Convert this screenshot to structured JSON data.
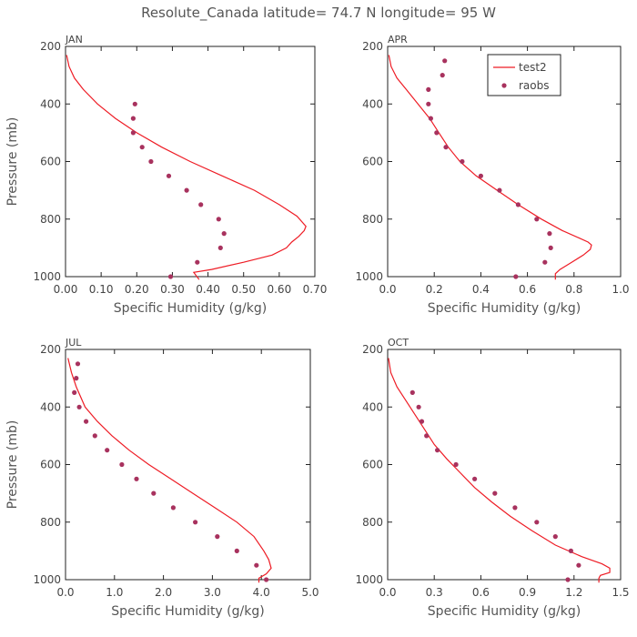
{
  "title": "Resolute_Canada   latitude= 74.7 N longitude= 95 W",
  "colors": {
    "model": "#ee1c25",
    "obs": "#a8325e",
    "text": "#444444"
  },
  "chart_data": [
    {
      "type": "line",
      "panel": "JAN",
      "xlabel": "Specific Humidity (g/kg)",
      "ylabel": "Pressure (mb)",
      "xlim": [
        0,
        0.7
      ],
      "ylim": [
        1000,
        200
      ],
      "xticks": [
        0,
        0.1,
        0.2,
        0.3,
        0.4,
        0.5,
        0.6,
        0.7
      ],
      "xtick_labels": [
        "0.00",
        "0.10",
        "0.20",
        "0.30",
        "0.40",
        "0.50",
        "0.60",
        "0.70"
      ],
      "yticks": [
        200,
        400,
        600,
        800,
        1000
      ],
      "ytick_labels": [
        "200",
        "400",
        "600",
        "800",
        "1000"
      ],
      "series": [
        {
          "name": "test2",
          "kind": "line",
          "x": [
            0.003,
            0.01,
            0.025,
            0.05,
            0.09,
            0.14,
            0.2,
            0.27,
            0.35,
            0.44,
            0.53,
            0.6,
            0.65,
            0.675,
            0.67,
            0.655,
            0.635,
            0.62,
            0.58,
            0.5,
            0.41,
            0.36,
            0.375
          ],
          "y": [
            230,
            270,
            310,
            350,
            400,
            450,
            500,
            550,
            600,
            650,
            700,
            750,
            790,
            825,
            840,
            860,
            880,
            900,
            925,
            950,
            975,
            985,
            1010
          ]
        },
        {
          "name": "raobs",
          "kind": "scatter",
          "x": [
            0.195,
            0.19,
            0.19,
            0.215,
            0.24,
            0.29,
            0.34,
            0.38,
            0.43,
            0.445,
            0.435,
            0.37,
            0.295
          ],
          "y": [
            400,
            450,
            500,
            550,
            600,
            650,
            700,
            750,
            800,
            850,
            900,
            950,
            1000
          ]
        }
      ]
    },
    {
      "type": "line",
      "panel": "APR",
      "xlabel": "Specific Humidity (g/kg)",
      "ylabel": "",
      "xlim": [
        0,
        1.0
      ],
      "ylim": [
        1000,
        200
      ],
      "xticks": [
        0,
        0.2,
        0.4,
        0.6,
        0.8,
        1.0
      ],
      "xtick_labels": [
        "0.0",
        "0.2",
        "0.4",
        "0.6",
        "0.8",
        "1.0"
      ],
      "yticks": [
        200,
        400,
        600,
        800,
        1000
      ],
      "ytick_labels": [
        "200",
        "400",
        "600",
        "800",
        "1000"
      ],
      "legend": {
        "loc": "top-right",
        "entries": [
          {
            "label": "test2",
            "kind": "line"
          },
          {
            "label": "raobs",
            "kind": "scatter"
          }
        ]
      },
      "series": [
        {
          "name": "test2",
          "kind": "line",
          "x": [
            0.005,
            0.015,
            0.04,
            0.08,
            0.13,
            0.18,
            0.22,
            0.26,
            0.31,
            0.38,
            0.47,
            0.56,
            0.66,
            0.75,
            0.82,
            0.86,
            0.875,
            0.87,
            0.84,
            0.79,
            0.74,
            0.72,
            0.72
          ],
          "y": [
            230,
            270,
            310,
            350,
            400,
            450,
            500,
            550,
            600,
            650,
            700,
            750,
            800,
            840,
            865,
            880,
            890,
            905,
            925,
            950,
            975,
            990,
            1010
          ]
        },
        {
          "name": "raobs",
          "kind": "scatter",
          "x": [
            0.245,
            0.235,
            0.175,
            0.175,
            0.185,
            0.21,
            0.25,
            0.32,
            0.4,
            0.48,
            0.56,
            0.64,
            0.695,
            0.7,
            0.675,
            0.55
          ],
          "y": [
            250,
            300,
            350,
            400,
            450,
            500,
            550,
            600,
            650,
            700,
            750,
            800,
            850,
            900,
            950,
            1000
          ]
        }
      ]
    },
    {
      "type": "line",
      "panel": "JUL",
      "xlabel": "Specific Humidity (g/kg)",
      "ylabel": "Pressure (mb)",
      "xlim": [
        0,
        5.0
      ],
      "ylim": [
        1000,
        200
      ],
      "xticks": [
        0,
        1,
        2,
        3,
        4,
        5
      ],
      "xtick_labels": [
        "0.0",
        "1.0",
        "2.0",
        "3.0",
        "4.0",
        "5.0"
      ],
      "yticks": [
        200,
        400,
        600,
        800,
        1000
      ],
      "ytick_labels": [
        "200",
        "400",
        "600",
        "800",
        "1000"
      ],
      "series": [
        {
          "name": "test2",
          "kind": "line",
          "x": [
            0.05,
            0.12,
            0.22,
            0.4,
            0.65,
            0.95,
            1.3,
            1.7,
            2.15,
            2.6,
            3.05,
            3.5,
            3.85,
            4.05,
            4.15,
            4.2,
            4.1,
            3.95,
            3.95
          ],
          "y": [
            230,
            280,
            330,
            400,
            450,
            500,
            550,
            600,
            650,
            700,
            750,
            800,
            850,
            900,
            930,
            960,
            980,
            995,
            1010
          ]
        },
        {
          "name": "raobs",
          "kind": "scatter",
          "x": [
            0.25,
            0.22,
            0.18,
            0.28,
            0.42,
            0.6,
            0.85,
            1.15,
            1.45,
            1.8,
            2.2,
            2.65,
            3.1,
            3.5,
            3.9,
            4.1
          ],
          "y": [
            250,
            300,
            350,
            400,
            450,
            500,
            550,
            600,
            650,
            700,
            750,
            800,
            850,
            900,
            950,
            1000
          ]
        }
      ]
    },
    {
      "type": "line",
      "panel": "OCT",
      "xlabel": "Specific Humidity (g/kg)",
      "ylabel": "",
      "xlim": [
        0,
        1.5
      ],
      "ylim": [
        1000,
        200
      ],
      "xticks": [
        0,
        0.3,
        0.6,
        0.9,
        1.2,
        1.5
      ],
      "xtick_labels": [
        "0.0",
        "0.3",
        "0.6",
        "0.9",
        "1.2",
        "1.5"
      ],
      "yticks": [
        200,
        400,
        600,
        800,
        1000
      ],
      "ytick_labels": [
        "200",
        "400",
        "600",
        "800",
        "1000"
      ],
      "series": [
        {
          "name": "test2",
          "kind": "line",
          "x": [
            0.005,
            0.02,
            0.06,
            0.12,
            0.18,
            0.24,
            0.3,
            0.38,
            0.47,
            0.56,
            0.67,
            0.79,
            0.93,
            1.08,
            1.25,
            1.38,
            1.43,
            1.43,
            1.37,
            1.36,
            1.36
          ],
          "y": [
            230,
            280,
            330,
            380,
            430,
            480,
            530,
            580,
            630,
            680,
            730,
            780,
            830,
            880,
            920,
            945,
            960,
            975,
            985,
            995,
            1010
          ]
        },
        {
          "name": "raobs",
          "kind": "scatter",
          "x": [
            0.16,
            0.2,
            0.22,
            0.25,
            0.32,
            0.44,
            0.56,
            0.69,
            0.82,
            0.96,
            1.08,
            1.18,
            1.23,
            1.16
          ],
          "y": [
            350,
            400,
            450,
            500,
            550,
            600,
            650,
            700,
            750,
            800,
            850,
            900,
            950,
            1000
          ]
        }
      ]
    }
  ]
}
